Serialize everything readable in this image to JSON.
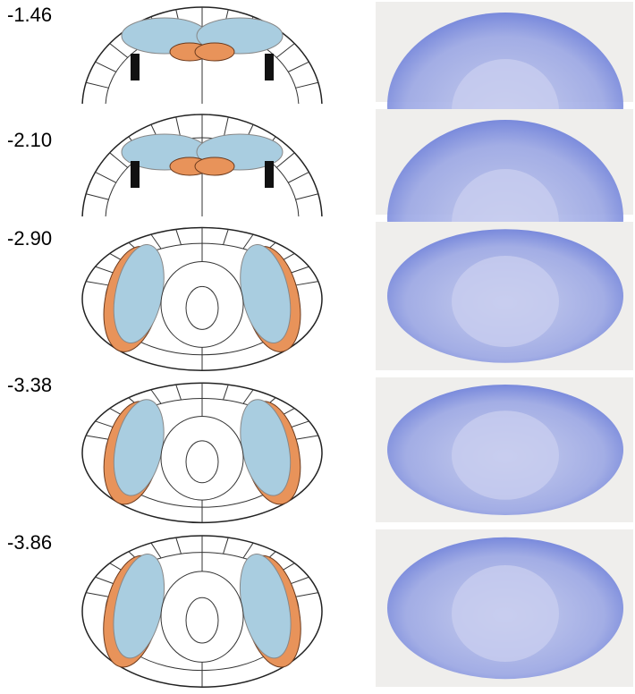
{
  "sections": [
    {
      "label": "-1.46"
    },
    {
      "label": "-2.10"
    },
    {
      "label": "-2.90"
    },
    {
      "label": "-3.38"
    },
    {
      "label": "-3.86"
    }
  ]
}
